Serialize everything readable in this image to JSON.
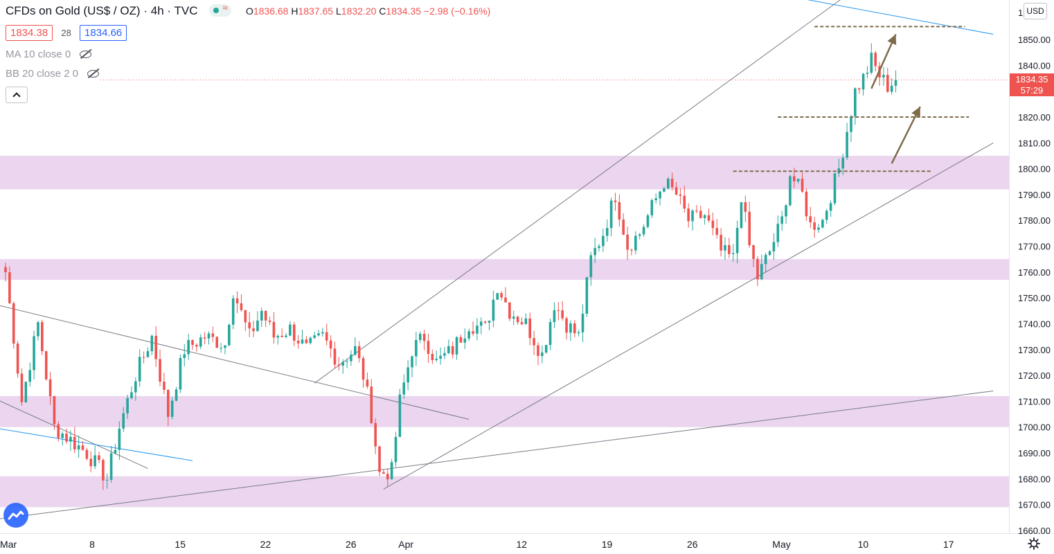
{
  "header": {
    "title": "CFDs on Gold (US$ / OZ)",
    "separator": "·",
    "interval": "4h",
    "source": "TVC",
    "ohlc": {
      "o_label": "O",
      "o": "1836.68",
      "h_label": "H",
      "h": "1837.65",
      "l_label": "L",
      "l": "1832.20",
      "c_label": "C",
      "c": "1834.35",
      "change": "−2.98 (−0.16%)"
    }
  },
  "trade": {
    "sell": "1834.38",
    "spread": "28",
    "buy": "1834.66"
  },
  "indicators": [
    {
      "label": "MA 10 close 0"
    },
    {
      "label": "BB 20 close 2 0"
    }
  ],
  "currency_button": "USD",
  "last_price": {
    "value": "1834.35",
    "countdown": "57:29"
  },
  "colors": {
    "up": "#26a69a",
    "down": "#ef5350",
    "zone": "#e1bee7",
    "channel": "#787b86",
    "blue_line": "#2196f3",
    "level": "#7d6b4a"
  },
  "chart_data": {
    "type": "candlestick",
    "title": "CFDs on Gold (US$ / OZ)",
    "xlabel": "",
    "ylabel": "",
    "ylim": [
      1657,
      1866
    ],
    "yticks": [
      1660,
      1670,
      1680,
      1690,
      1700,
      1710,
      1720,
      1730,
      1740,
      1750,
      1760,
      1770,
      1780,
      1790,
      1800,
      1810,
      1820,
      1830,
      1840,
      1850
    ],
    "top_tick_partial": "1",
    "xtick_labels": [
      "Mar",
      "8",
      "15",
      "22",
      "26",
      "Apr",
      "12",
      "19",
      "26",
      "May",
      "10",
      "17"
    ],
    "xtick_bar_index": [
      0,
      22,
      43,
      64,
      85,
      98,
      127,
      148,
      169,
      190,
      211,
      232
    ],
    "last_bar_index": 219,
    "anchors": [
      [
        0,
        1760
      ],
      [
        4,
        1710
      ],
      [
        8,
        1740
      ],
      [
        12,
        1700
      ],
      [
        16,
        1695
      ],
      [
        20,
        1690
      ],
      [
        25,
        1680
      ],
      [
        28,
        1700
      ],
      [
        32,
        1720
      ],
      [
        36,
        1735
      ],
      [
        40,
        1705
      ],
      [
        44,
        1730
      ],
      [
        49,
        1735
      ],
      [
        54,
        1732
      ],
      [
        56,
        1753
      ],
      [
        60,
        1735
      ],
      [
        63,
        1745
      ],
      [
        66,
        1735
      ],
      [
        70,
        1738
      ],
      [
        74,
        1730
      ],
      [
        78,
        1735
      ],
      [
        82,
        1725
      ],
      [
        86,
        1730
      ],
      [
        88,
        1720
      ],
      [
        90,
        1705
      ],
      [
        92,
        1682
      ],
      [
        95,
        1683
      ],
      [
        97,
        1710
      ],
      [
        100,
        1730
      ],
      [
        103,
        1735
      ],
      [
        106,
        1725
      ],
      [
        110,
        1730
      ],
      [
        114,
        1740
      ],
      [
        118,
        1738
      ],
      [
        121,
        1755
      ],
      [
        124,
        1745
      ],
      [
        128,
        1740
      ],
      [
        132,
        1728
      ],
      [
        135,
        1748
      ],
      [
        138,
        1740
      ],
      [
        141,
        1735
      ],
      [
        144,
        1765
      ],
      [
        147,
        1775
      ],
      [
        150,
        1790
      ],
      [
        153,
        1770
      ],
      [
        156,
        1775
      ],
      [
        159,
        1785
      ],
      [
        162,
        1795
      ],
      [
        165,
        1790
      ],
      [
        168,
        1780
      ],
      [
        172,
        1782
      ],
      [
        176,
        1768
      ],
      [
        179,
        1765
      ],
      [
        181,
        1790
      ],
      [
        183,
        1770
      ],
      [
        185,
        1758
      ],
      [
        188,
        1768
      ],
      [
        191,
        1780
      ],
      [
        193,
        1798
      ],
      [
        196,
        1790
      ],
      [
        198,
        1778
      ],
      [
        201,
        1780
      ],
      [
        203,
        1790
      ],
      [
        205,
        1800
      ],
      [
        207,
        1815
      ],
      [
        209,
        1830
      ],
      [
        211,
        1835
      ],
      [
        213,
        1842
      ],
      [
        215,
        1836
      ],
      [
        217,
        1832
      ],
      [
        219,
        1834.35
      ]
    ],
    "zones": [
      [
        1792,
        1805
      ],
      [
        1757,
        1765
      ],
      [
        1700,
        1712
      ],
      [
        1669,
        1681
      ]
    ],
    "trend_lines": [
      {
        "kind": "channel",
        "points": [
          [
            -4,
            1748
          ],
          [
            114,
            1703
          ]
        ]
      },
      {
        "kind": "channel",
        "points": [
          [
            -4,
            1712
          ],
          [
            35,
            1684
          ]
        ]
      },
      {
        "kind": "channel",
        "points": [
          [
            -4,
            1664
          ],
          [
            243,
            1714
          ]
        ]
      },
      {
        "kind": "channel",
        "points": [
          [
            93,
            1676
          ],
          [
            243,
            1810
          ]
        ]
      },
      {
        "kind": "channel",
        "points": [
          [
            76,
            1717
          ],
          [
            219,
            1881
          ]
        ]
      },
      {
        "kind": "blue",
        "points": [
          [
            -4,
            1700
          ],
          [
            46,
            1687
          ]
        ]
      },
      {
        "kind": "blue",
        "points": [
          [
            185,
            1869
          ],
          [
            243,
            1852
          ]
        ]
      }
    ],
    "levels": [
      {
        "value": 1855,
        "from": 199,
        "to": 236
      },
      {
        "value": 1820,
        "from": 190,
        "to": 237
      },
      {
        "value": 1799,
        "from": 179,
        "to": 228
      }
    ],
    "arrows": [
      {
        "from": [
          213,
          1831
        ],
        "to": [
          219,
          1852
        ]
      },
      {
        "from": [
          218,
          1802
        ],
        "to": [
          225,
          1824
        ]
      }
    ]
  }
}
